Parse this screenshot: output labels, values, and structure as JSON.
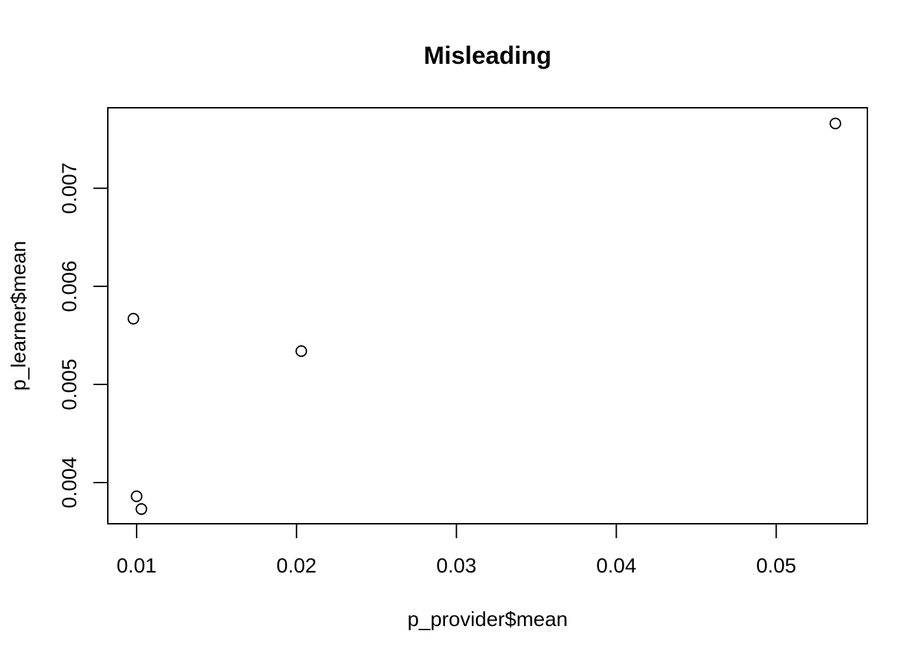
{
  "chart_data": {
    "type": "scatter",
    "title": "Misleading",
    "xlabel": "p_provider$mean",
    "ylabel": "p_learner$mean",
    "xlim": [
      0.0082,
      0.0557
    ],
    "ylim": [
      0.00358,
      0.00782
    ],
    "xticks": [
      0.01,
      0.02,
      0.03,
      0.04,
      0.05
    ],
    "xtick_labels": [
      "0.01",
      "0.02",
      "0.03",
      "0.04",
      "0.05"
    ],
    "yticks": [
      0.004,
      0.005,
      0.006,
      0.007
    ],
    "ytick_labels": [
      "0.004",
      "0.005",
      "0.006",
      "0.007"
    ],
    "grid": false,
    "legend": "none",
    "marker": "open-circle",
    "points": [
      {
        "x": 0.0098,
        "y": 0.00567
      },
      {
        "x": 0.01,
        "y": 0.00386
      },
      {
        "x": 0.0103,
        "y": 0.00373
      },
      {
        "x": 0.0203,
        "y": 0.00534
      },
      {
        "x": 0.0537,
        "y": 0.00766
      }
    ]
  }
}
